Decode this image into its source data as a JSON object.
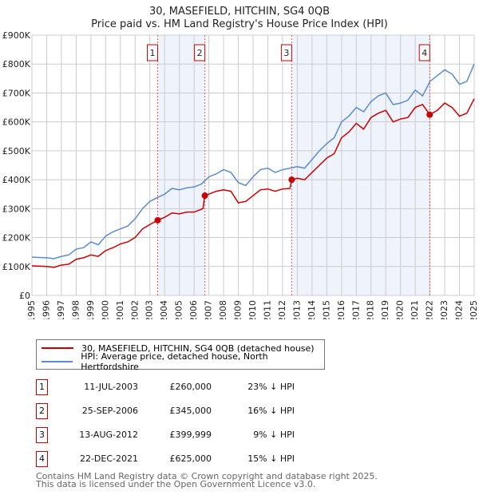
{
  "title": "30, MASEFIELD, HITCHIN, SG4 0QB",
  "subtitle": "Price paid vs. HM Land Registry's House Price Index (HPI)",
  "chart_data": {
    "type": "line",
    "ylim": [
      0,
      900000
    ],
    "xlim": [
      1995,
      2025
    ],
    "yticks": [
      {
        "v": 0,
        "label": "£0"
      },
      {
        "v": 100000,
        "label": "£100K"
      },
      {
        "v": 200000,
        "label": "£200K"
      },
      {
        "v": 300000,
        "label": "£300K"
      },
      {
        "v": 400000,
        "label": "£400K"
      },
      {
        "v": 500000,
        "label": "£500K"
      },
      {
        "v": 600000,
        "label": "£600K"
      },
      {
        "v": 700000,
        "label": "£700K"
      },
      {
        "v": 800000,
        "label": "£800K"
      },
      {
        "v": 900000,
        "label": "£900K"
      }
    ],
    "xticks": [
      "1995",
      "1996",
      "1997",
      "1998",
      "1999",
      "2000",
      "2001",
      "2002",
      "2003",
      "2004",
      "2005",
      "2006",
      "2007",
      "2008",
      "2009",
      "2010",
      "2011",
      "2012",
      "2013",
      "2014",
      "2015",
      "2016",
      "2017",
      "2018",
      "2019",
      "2020",
      "2021",
      "2022",
      "2023",
      "2024",
      "2025"
    ],
    "grid": true,
    "series": [
      {
        "name": "30, MASEFIELD, HITCHIN, SG4 0QB (detached house)",
        "color": "#cc0000",
        "x": [
          1995,
          1996,
          1996.5,
          1997,
          1997.5,
          1998,
          1998.5,
          1999,
          1999.5,
          2000,
          2000.5,
          2001,
          2001.5,
          2002,
          2002.5,
          2003,
          2003.53,
          2004,
          2004.5,
          2005,
          2005.5,
          2006,
          2006.6,
          2006.73,
          2007,
          2007.5,
          2008,
          2008.5,
          2009,
          2009.5,
          2010,
          2010.5,
          2011,
          2011.5,
          2012,
          2012.5,
          2012.62,
          2013,
          2013.5,
          2014,
          2014.5,
          2015,
          2015.5,
          2016,
          2016.5,
          2017,
          2017.5,
          2018,
          2018.5,
          2019,
          2019.5,
          2020,
          2020.5,
          2021,
          2021.5,
          2021.98,
          2022.5,
          2023,
          2023.5,
          2024,
          2024.5,
          2025
        ],
        "y": [
          102,
          100,
          97,
          105,
          108,
          125,
          130,
          140,
          135,
          155,
          165,
          178,
          185,
          200,
          230,
          245,
          260,
          270,
          285,
          282,
          288,
          288,
          300,
          345,
          350,
          360,
          365,
          360,
          320,
          325,
          345,
          365,
          368,
          360,
          368,
          370,
          400,
          405,
          400,
          425,
          450,
          475,
          490,
          545,
          565,
          595,
          575,
          615,
          630,
          640,
          600,
          610,
          615,
          650,
          660,
          625,
          640,
          665,
          650,
          620,
          630,
          680
        ]
      },
      {
        "name": "HPI: Average price, detached house, North Hertfordshire",
        "color": "#5b8ccc",
        "x": [
          1995,
          1996,
          1996.5,
          1997,
          1997.5,
          1998,
          1998.5,
          1999,
          1999.5,
          2000,
          2000.5,
          2001,
          2001.5,
          2002,
          2002.5,
          2003,
          2003.5,
          2004,
          2004.5,
          2005,
          2005.5,
          2006,
          2006.5,
          2007,
          2007.5,
          2008,
          2008.5,
          2009,
          2009.5,
          2010,
          2010.5,
          2011,
          2011.5,
          2012,
          2012.5,
          2013,
          2013.5,
          2014,
          2014.5,
          2015,
          2015.5,
          2016,
          2016.5,
          2017,
          2017.5,
          2018,
          2018.5,
          2019,
          2019.5,
          2020,
          2020.5,
          2021,
          2021.5,
          2022,
          2022.5,
          2023,
          2023.5,
          2024,
          2024.5,
          2025
        ],
        "y": [
          132,
          130,
          127,
          135,
          140,
          160,
          165,
          185,
          175,
          205,
          220,
          230,
          240,
          265,
          300,
          325,
          338,
          350,
          370,
          365,
          372,
          375,
          385,
          410,
          420,
          435,
          425,
          390,
          380,
          410,
          435,
          440,
          425,
          435,
          440,
          445,
          440,
          470,
          500,
          525,
          545,
          600,
          620,
          650,
          635,
          670,
          690,
          700,
          660,
          665,
          675,
          710,
          690,
          740,
          760,
          780,
          765,
          730,
          740,
          800
        ]
      }
    ],
    "y_units": "thousands GBP",
    "annotations": [
      {
        "label": "1",
        "x": 2003.53,
        "y": 260
      },
      {
        "label": "2",
        "x": 2006.73,
        "y": 345
      },
      {
        "label": "3",
        "x": 2012.62,
        "y": 400
      },
      {
        "label": "4",
        "x": 2021.98,
        "y": 625
      }
    ],
    "shaded": [
      [
        2003.53,
        2006.73
      ],
      [
        2012.62,
        2021.98
      ]
    ]
  },
  "legend": [
    "30, MASEFIELD, HITCHIN, SG4 0QB (detached house)",
    "HPI: Average price, detached house, North Hertfordshire"
  ],
  "sales": [
    {
      "n": "1",
      "date": "11-JUL-2003",
      "price": "£260,000",
      "pct": "23% ↓ HPI"
    },
    {
      "n": "2",
      "date": "25-SEP-2006",
      "price": "£345,000",
      "pct": "16% ↓ HPI"
    },
    {
      "n": "3",
      "date": "13-AUG-2012",
      "price": "£399,999",
      "pct": "9% ↓ HPI"
    },
    {
      "n": "4",
      "date": "22-DEC-2021",
      "price": "£625,000",
      "pct": "15% ↓ HPI"
    }
  ],
  "footer": [
    "Contains HM Land Registry data © Crown copyright and database right 2025.",
    "This data is licensed under the Open Government Licence v3.0."
  ]
}
